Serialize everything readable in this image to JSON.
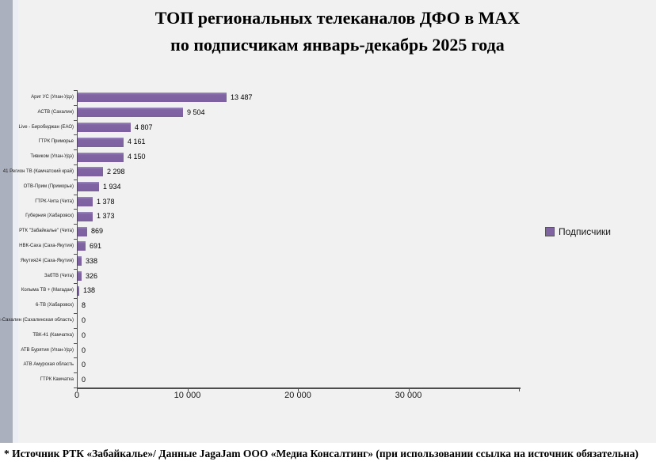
{
  "title": {
    "line1": "ТОП региональных телеканалов ДФО в MAX",
    "line2": "по подписчикам январь-декабрь 2025 года"
  },
  "footer": {
    "text": "* Источник РТК «Забайкалье»/ Данные JagaJam ООО «Медиа Консалтинг» (при использовании ссылка на источник обязательна)"
  },
  "legend": {
    "label": "Подписчики"
  },
  "colors": {
    "bar_fill": "#8064a2",
    "bar_highlight": "#9b89bc",
    "page_background": "#f1f1f1",
    "left_rail": "#aab0bd",
    "axis": "#4d4d4d",
    "footer_background": "#ffffff"
  },
  "chart_data": {
    "type": "bar",
    "orientation": "horizontal",
    "title": "ТОП региональных телеканалов ДФО в MAX по подписчикам январь-декабрь 2025 года",
    "xlabel": "",
    "ylabel": "",
    "xlim": [
      0,
      40000
    ],
    "x_ticks": [
      "0",
      "10 000",
      "20 000",
      "30 000"
    ],
    "grid": false,
    "legend_entries": [
      "Подписчики"
    ],
    "legend_position": "right",
    "categories": [
      "Ариг УС (Улан-Удэ)",
      "АСТВ (Сахалин)",
      "Live - Биробиджан (ЕАО)",
      "ГТРК Приморье",
      "Тивиком (Улан-Удэ)",
      "41 Регион ТВ (Камчатский край)",
      "ОТВ-Прим (Приморье)",
      "ГТРК-Чита (Чита)",
      "Губерния (Хабаровск)",
      "РТК \"Забайкалье\" (Чита)",
      "НВК-Саха (Саха-Якутия)",
      "Якутия24 (Саха-Якутия)",
      "ЗабТВ (Чита)",
      "Колыма ТВ + (Магадан)",
      "6-ТВ (Хабаровск)",
      "ОТВ-Сахалин (Сахалинская область)",
      "ТВК-41 (Камчатка)",
      "АТВ Бурятия (Улан-Удэ)",
      "АТВ Амурская область",
      "ГТРК Камчатка"
    ],
    "values": [
      13487,
      9504,
      4807,
      4161,
      4150,
      2298,
      1934,
      1378,
      1373,
      869,
      691,
      338,
      326,
      138,
      8,
      0,
      0,
      0,
      0,
      0
    ],
    "value_labels": [
      "13 487",
      "9 504",
      "4 807",
      "4 161",
      "4 150",
      "2 298",
      "1 934",
      "1 378",
      "1 373",
      "869",
      "691",
      "338",
      "326",
      "138",
      "8",
      "0",
      "0",
      "0",
      "0",
      "0"
    ]
  }
}
